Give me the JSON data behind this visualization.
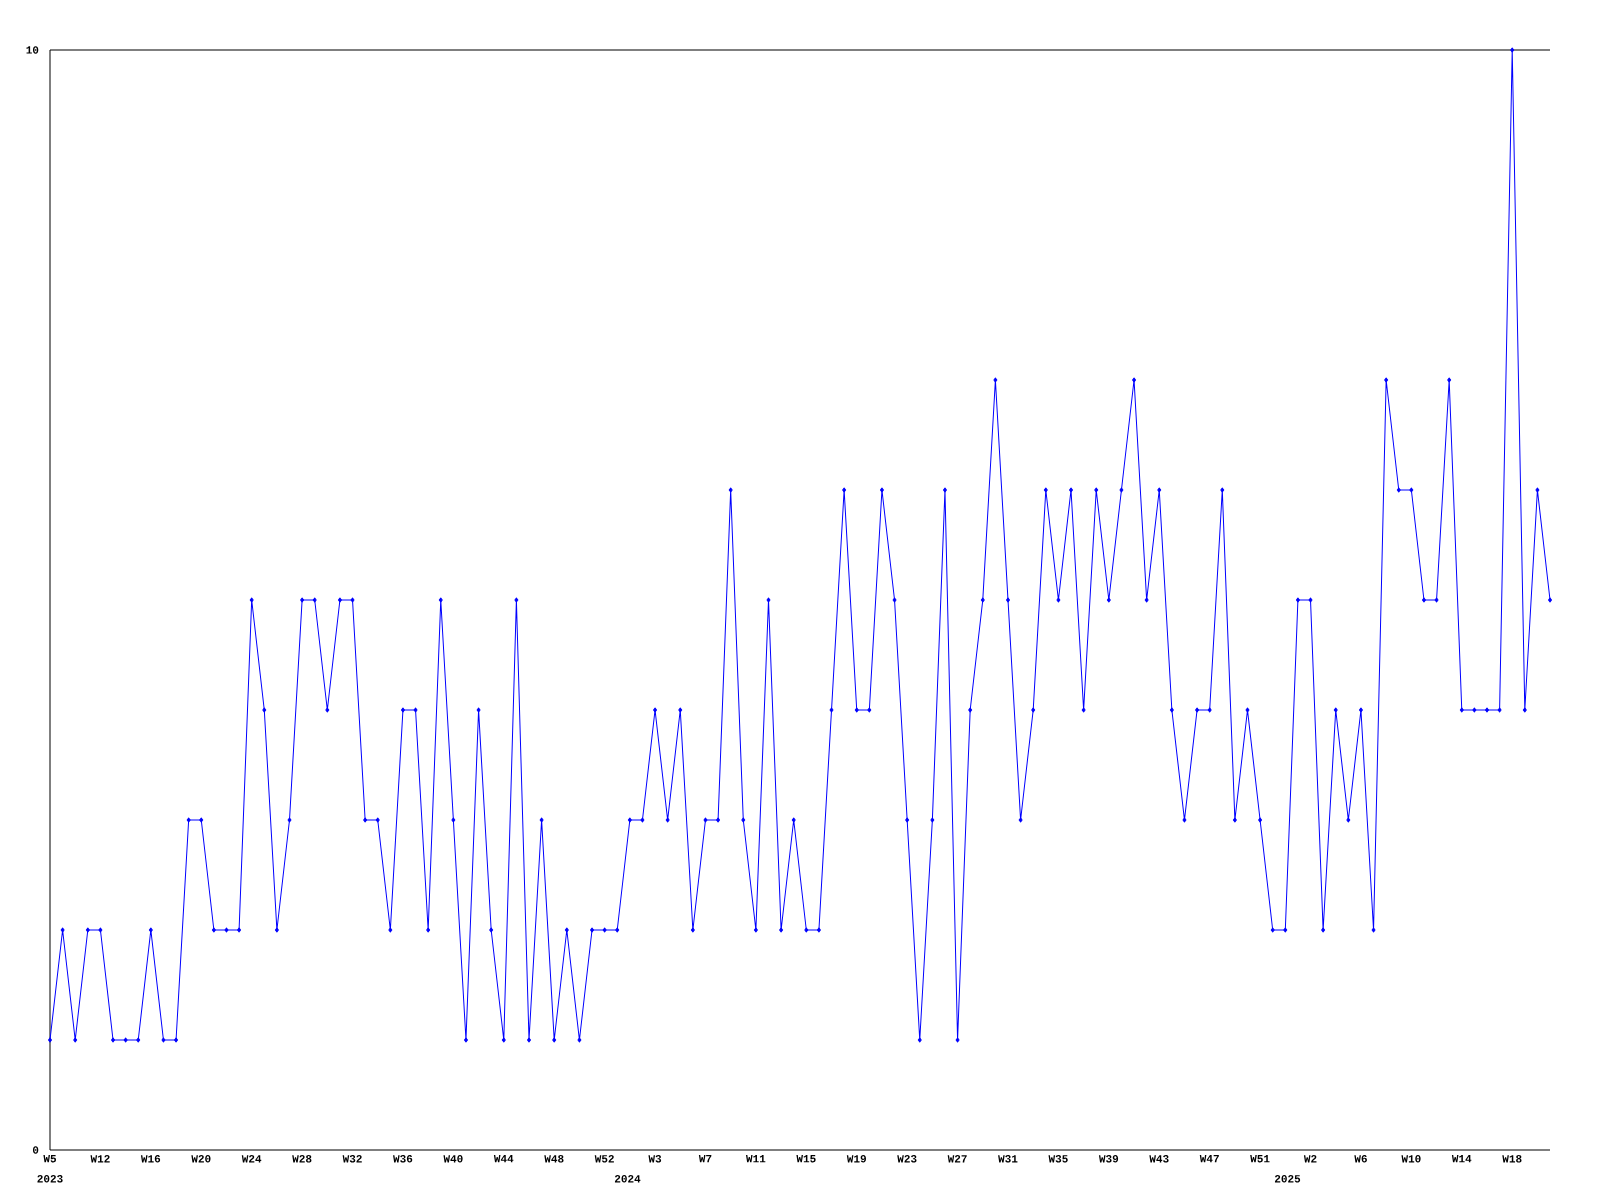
{
  "chart_data": {
    "type": "line",
    "categories": [
      "W5",
      null,
      null,
      null,
      "W12",
      null,
      null,
      null,
      "W16",
      null,
      null,
      null,
      "W20",
      null,
      null,
      null,
      "W24",
      null,
      null,
      null,
      "W28",
      null,
      null,
      null,
      "W32",
      null,
      null,
      null,
      "W36",
      null,
      null,
      null,
      "W40",
      null,
      null,
      null,
      "W44",
      null,
      null,
      null,
      "W48",
      null,
      null,
      null,
      "W52",
      null,
      null,
      null,
      "W3",
      null,
      null,
      null,
      "W7",
      null,
      null,
      null,
      "W11",
      null,
      null,
      null,
      "W15",
      null,
      null,
      null,
      "W19",
      null,
      null,
      null,
      "W23",
      null,
      null,
      null,
      "W27",
      null,
      null,
      null,
      "W31",
      null,
      null,
      null,
      "W35",
      null,
      null,
      null,
      "W39",
      null,
      null,
      null,
      "W43",
      null,
      null,
      null,
      "W47",
      null,
      null,
      null,
      "W51",
      null,
      null,
      null,
      "W2",
      null,
      null,
      null,
      "W6",
      null,
      null,
      null,
      "W10",
      null,
      null,
      null,
      "W14",
      null,
      null,
      null,
      "W18",
      null,
      null,
      null
    ],
    "values": [
      1,
      2,
      1,
      2,
      2,
      1,
      1,
      1,
      2,
      1,
      1,
      3,
      3,
      2,
      2,
      2,
      5,
      4,
      2,
      3,
      5,
      5,
      4,
      5,
      5,
      3,
      3,
      2,
      4,
      4,
      2,
      5,
      3,
      1,
      4,
      2,
      1,
      5,
      1,
      3,
      1,
      2,
      1,
      2,
      2,
      2,
      3,
      3,
      4,
      3,
      4,
      2,
      3,
      3,
      6,
      3,
      2,
      5,
      2,
      3,
      2,
      2,
      4,
      6,
      4,
      4,
      6,
      5,
      3,
      1,
      3,
      6,
      1,
      4,
      5,
      7,
      5,
      3,
      4,
      6,
      5,
      6,
      4,
      6,
      5,
      6,
      7,
      5,
      6,
      4,
      3,
      4,
      4,
      6,
      3,
      4,
      3,
      2,
      2,
      5,
      5,
      2,
      4,
      3,
      4,
      2,
      7,
      6,
      6,
      5,
      5,
      7,
      4,
      4,
      4,
      4,
      10,
      4,
      6,
      5
    ],
    "color": "#0000ff",
    "marker": "diamond",
    "line_style": "solid",
    "ylim": [
      0,
      10
    ],
    "yticks": [
      0,
      10
    ],
    "annotations": [
      "2023",
      "2024",
      "2025"
    ]
  }
}
